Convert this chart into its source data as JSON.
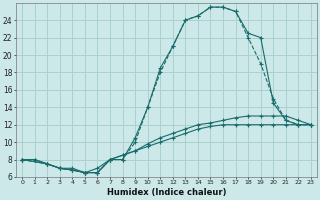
{
  "xlabel": "Humidex (Indice chaleur)",
  "background_color": "#cce8e8",
  "grid_color": "#aad0d0",
  "line_color": "#1a6b6b",
  "xlim": [
    -0.5,
    23.5
  ],
  "ylim": [
    6,
    26
  ],
  "xticks": [
    0,
    1,
    2,
    3,
    4,
    5,
    6,
    7,
    8,
    9,
    10,
    11,
    12,
    13,
    14,
    15,
    16,
    17,
    18,
    19,
    20,
    21,
    22,
    23
  ],
  "yticks": [
    6,
    8,
    10,
    12,
    14,
    16,
    18,
    20,
    22,
    24
  ],
  "series": [
    {
      "x": [
        0,
        1,
        2,
        3,
        4,
        5,
        6,
        7,
        8,
        9,
        10,
        11,
        12,
        13,
        14,
        15,
        16,
        17,
        18,
        19,
        20,
        21,
        22,
        23
      ],
      "y": [
        8,
        8,
        7.5,
        7,
        7,
        6.5,
        6.5,
        8,
        8.5,
        9,
        9.5,
        10,
        10.5,
        11,
        11.5,
        11.8,
        12,
        12,
        12,
        12,
        12,
        12,
        12,
        12
      ],
      "style": "-",
      "marker": "+"
    },
    {
      "x": [
        0,
        1,
        2,
        3,
        4,
        5,
        6,
        7,
        8,
        9,
        10,
        11,
        12,
        13,
        14,
        15,
        16,
        17,
        18,
        19,
        20,
        21,
        22,
        23
      ],
      "y": [
        8,
        8,
        7.5,
        7,
        6.8,
        6.5,
        7,
        8,
        8.5,
        9,
        9.8,
        10.5,
        11,
        11.5,
        12,
        12.2,
        12.5,
        12.8,
        13,
        13,
        13,
        13,
        12.5,
        12
      ],
      "style": "-",
      "marker": "+"
    },
    {
      "x": [
        0,
        2,
        3,
        4,
        5,
        6,
        7,
        8,
        9,
        10,
        11,
        12,
        13,
        14,
        15,
        16,
        17,
        18,
        19,
        20,
        21,
        22,
        23
      ],
      "y": [
        8,
        7.5,
        7,
        6.8,
        6.5,
        6.5,
        8,
        8,
        10,
        14,
        18,
        21,
        24,
        24.5,
        25.5,
        25.5,
        25,
        22,
        19,
        15,
        12.5,
        12,
        12
      ],
      "style": "--",
      "marker": "+"
    },
    {
      "x": [
        0,
        2,
        3,
        4,
        5,
        6,
        7,
        8,
        9,
        10,
        11,
        12,
        13,
        14,
        15,
        16,
        17,
        18,
        19,
        20,
        21,
        22,
        23
      ],
      "y": [
        8,
        7.5,
        7,
        6.8,
        6.5,
        6.5,
        8,
        8,
        10.5,
        14,
        18.5,
        21,
        24,
        24.5,
        25.5,
        25.5,
        25,
        22.5,
        22,
        14.5,
        12.5,
        12,
        12
      ],
      "style": "-",
      "marker": "+"
    }
  ]
}
